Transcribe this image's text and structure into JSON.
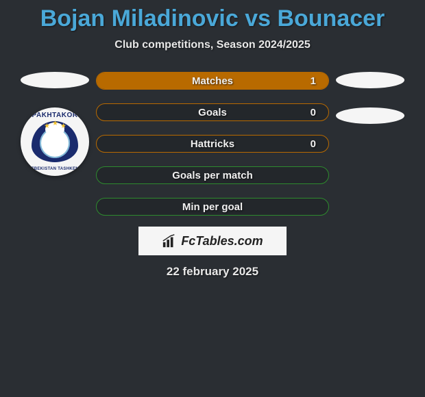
{
  "title": "Bojan Miladinovic vs Bounacer",
  "subtitle": "Club competitions, Season 2024/2025",
  "date": "22 february 2025",
  "watermark_text": "FcTables.com",
  "background_color": "#2a2e33",
  "title_color": "#4aa8d8",
  "text_color": "#e8e8e8",
  "bars": [
    {
      "label": "Matches",
      "value": "1",
      "border": "#b86a00",
      "fill": "#b86a00",
      "fill_side": "right",
      "fill_pct": 100
    },
    {
      "label": "Goals",
      "value": "0",
      "border": "#b86a00",
      "fill": "#b86a00",
      "fill_side": "none",
      "fill_pct": 0
    },
    {
      "label": "Hattricks",
      "value": "0",
      "border": "#b86a00",
      "fill": "#b86a00",
      "fill_side": "none",
      "fill_pct": 0
    },
    {
      "label": "Goals per match",
      "value": "",
      "border": "#2e8b2e",
      "fill": "#2e8b2e",
      "fill_side": "none",
      "fill_pct": 0
    },
    {
      "label": "Min per goal",
      "value": "",
      "border": "#2e8b2e",
      "fill": "#2e8b2e",
      "fill_side": "none",
      "fill_pct": 0
    }
  ],
  "badge": {
    "top_text": "PAKHTAKOR",
    "bottom_text": "UZBEKISTAN TASHKENT",
    "ring_bg": "#f5f5f5",
    "inner_bg": "#1a2b6d",
    "text_color": "#1a2b6d",
    "star_color": "#f4c430"
  },
  "ellipse_color": "#f5f5f5"
}
